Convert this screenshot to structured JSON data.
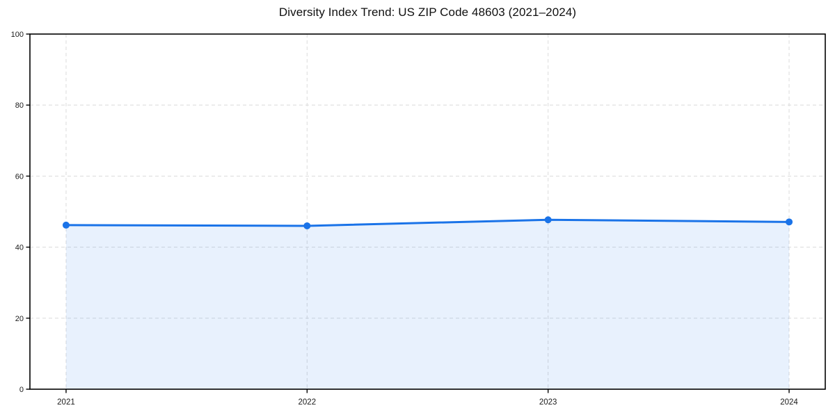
{
  "chart_data": {
    "type": "area",
    "title": "Diversity Index Trend: US ZIP Code 48603 (2021–2024)",
    "categories": [
      "2021",
      "2022",
      "2023",
      "2024"
    ],
    "series": [
      {
        "name": "Diversity Index",
        "values": [
          46.2,
          46.0,
          47.7,
          47.1
        ]
      }
    ],
    "xlabel": "",
    "ylabel": "",
    "ylim": [
      0,
      100
    ],
    "yticks": [
      0,
      20,
      40,
      60,
      80,
      100
    ],
    "grid": {
      "horizontal": true,
      "vertical": true,
      "style": "dashed"
    },
    "legend": "none",
    "marker": "circle",
    "colors": {
      "line": "#1A73E8",
      "area_fill": "#E8F1FD",
      "grid_line": "#DEDEDE",
      "axis": "#000000",
      "background": "#FFFFFF",
      "title_text": "#0F0F0F",
      "tick_text": "#1A1A1A"
    }
  }
}
